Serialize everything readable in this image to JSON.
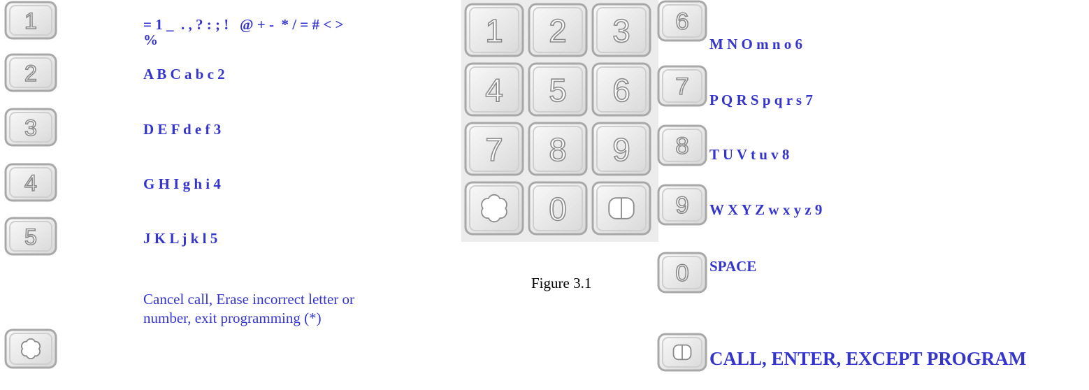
{
  "left_keys": [
    {
      "key": "1",
      "lines": [
        "= 1 _  . , ? : ; !   @ + -  * / = # < >",
        "%"
      ]
    },
    {
      "key": "2",
      "lines": [
        "A B C a b c 2"
      ]
    },
    {
      "key": "3",
      "lines": [
        "D E F d e f 3"
      ]
    },
    {
      "key": "4",
      "lines": [
        "G H I g h i 4"
      ]
    },
    {
      "key": "5",
      "lines": [
        "J K L j k l 5"
      ]
    }
  ],
  "star_key": {
    "lines": [
      "Cancel call, Erase incorrect letter or",
      "number, exit programming (*)"
    ]
  },
  "keypad": {
    "digits": [
      "1",
      "2",
      "3",
      "4",
      "5",
      "6",
      "7",
      "8",
      "9",
      "0"
    ],
    "caption": "Figure 3.1"
  },
  "right_keys": [
    {
      "key": "6",
      "lines": [
        "M N O m n o 6"
      ]
    },
    {
      "key": "7",
      "lines": [
        "P Q R S p q r s 7"
      ]
    },
    {
      "key": "8",
      "lines": [
        "T U V t u v 8"
      ]
    },
    {
      "key": "9",
      "lines": [
        "W X Y Z w x y z 9"
      ]
    },
    {
      "key": "0",
      "lines": [
        "SPACE"
      ]
    }
  ],
  "hash_key": {
    "lines": [
      "CALL, ENTER, EXCEPT PROGRAM"
    ]
  }
}
